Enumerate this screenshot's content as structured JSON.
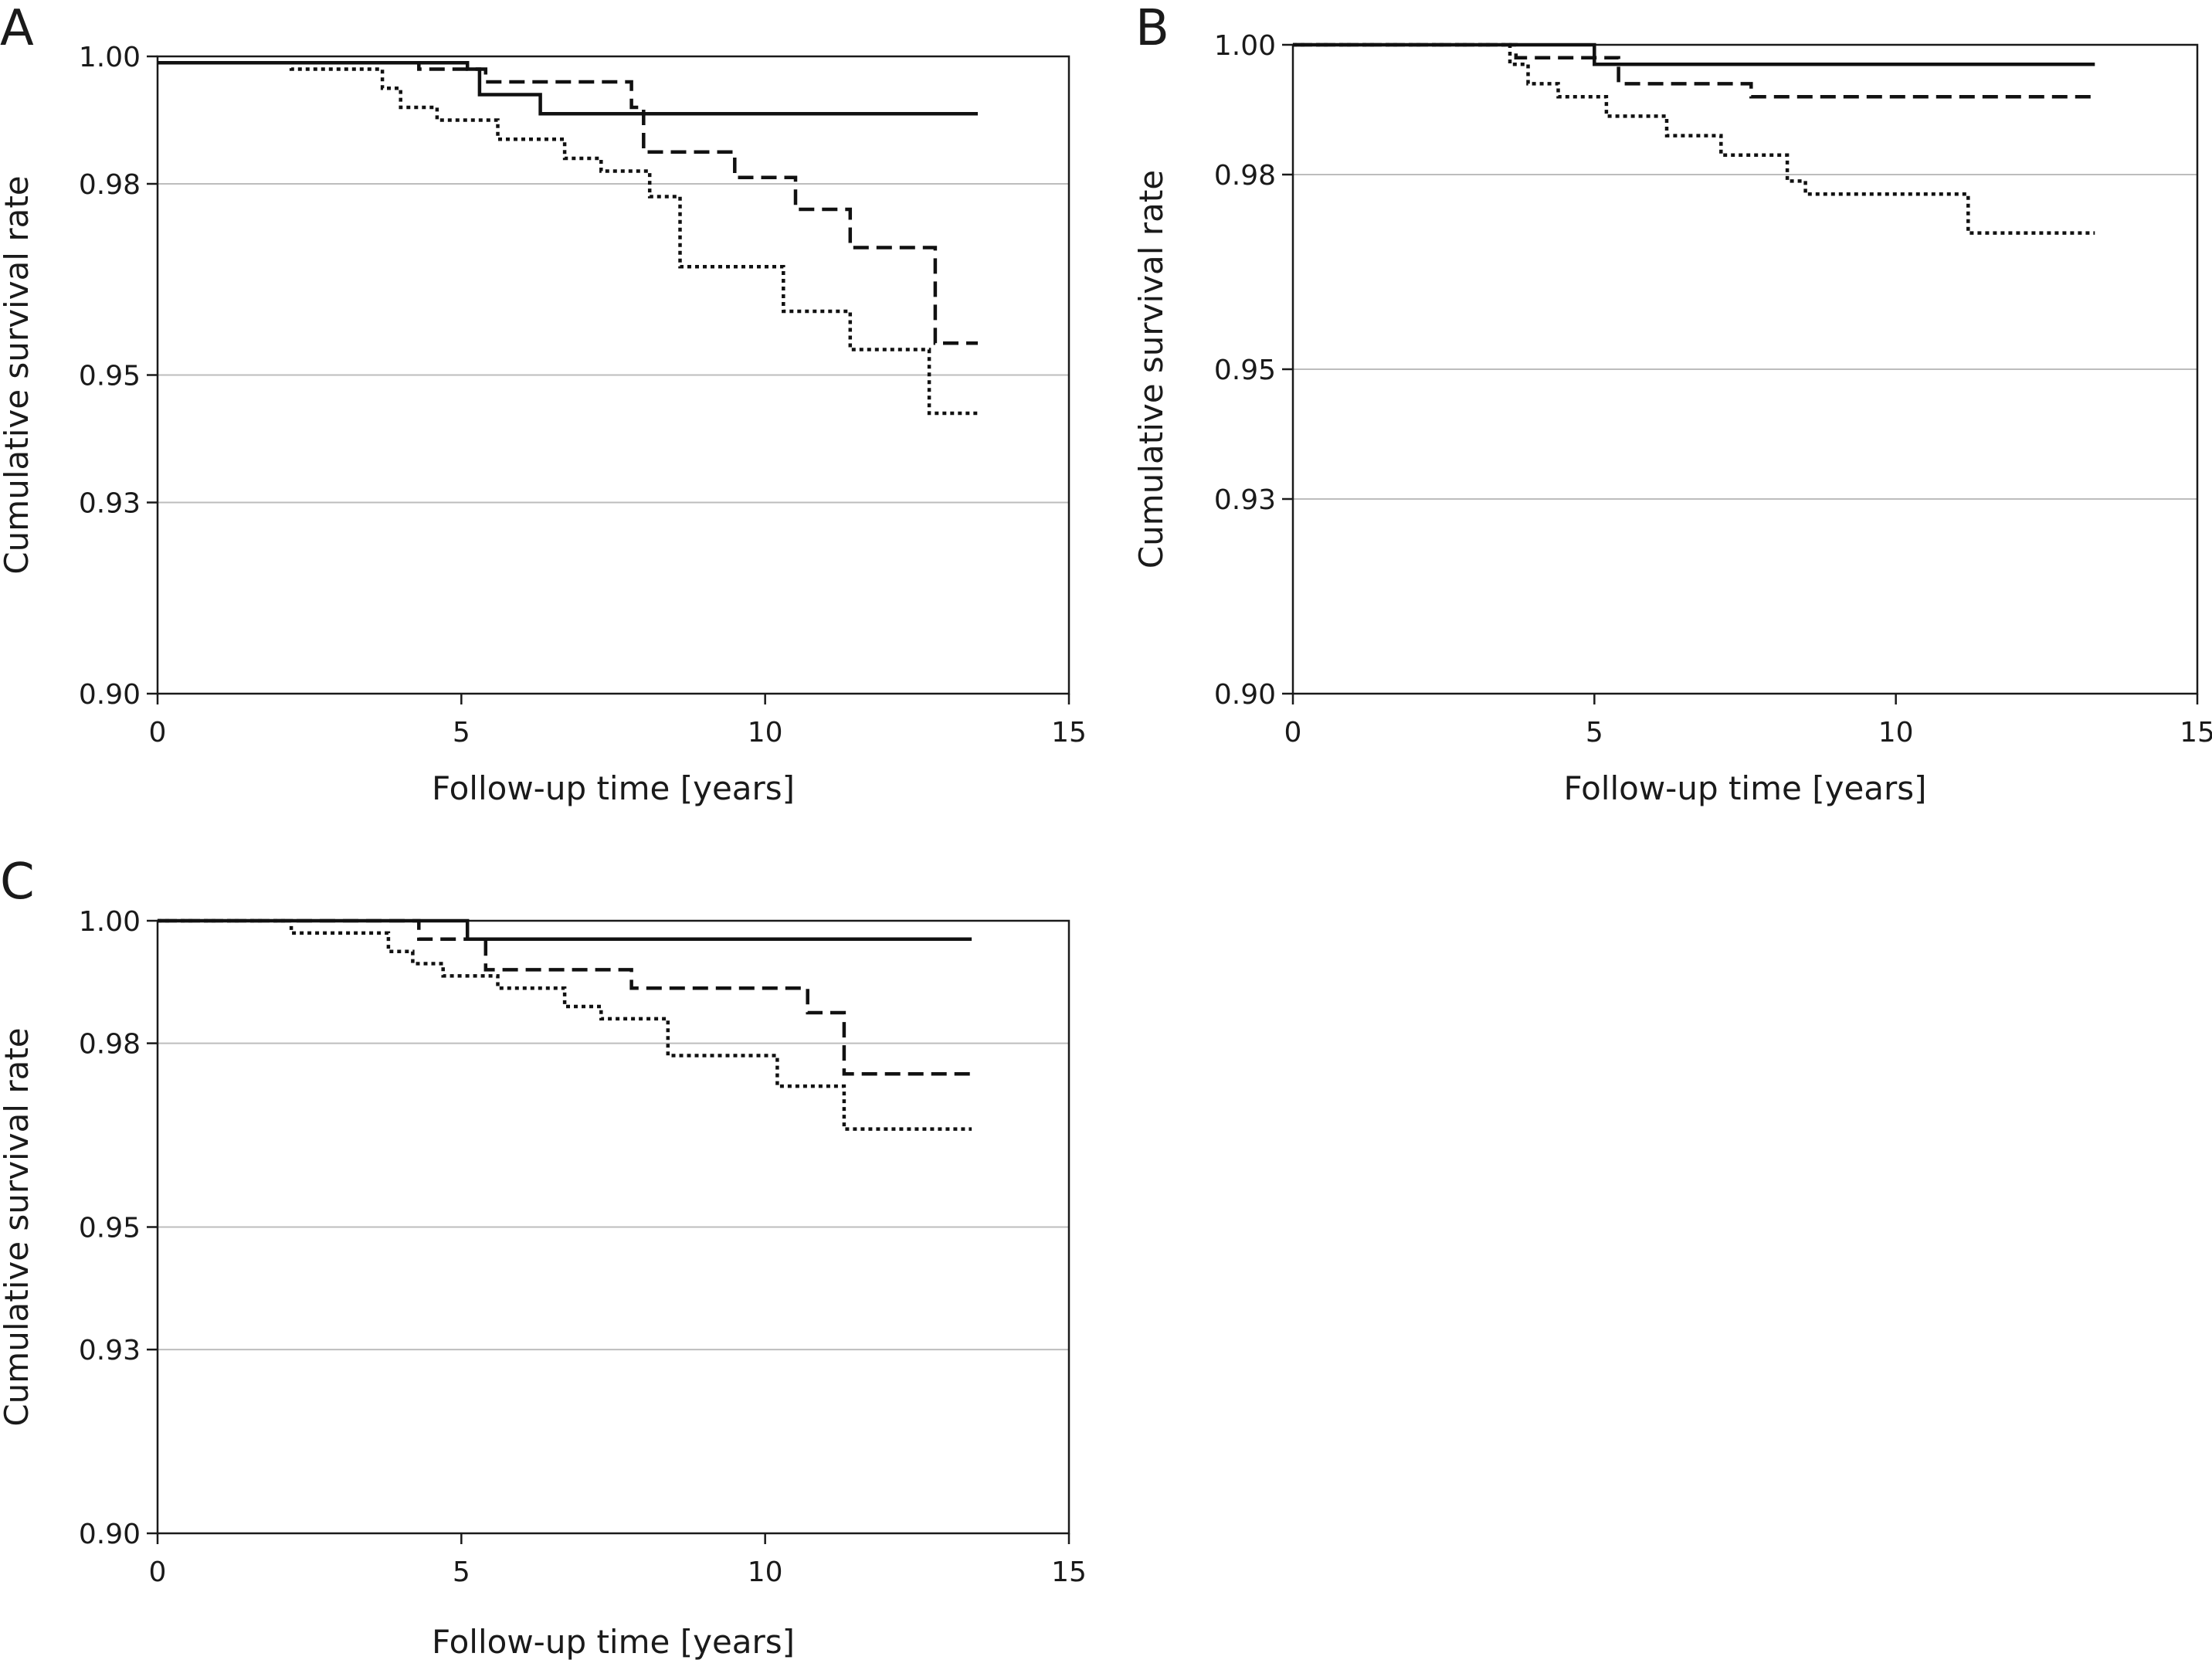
{
  "chart_data": [
    {
      "panel_label": "A",
      "type": "line",
      "step": true,
      "xlabel": "Follow-up time [years]",
      "ylabel": "Cumulative survival rate",
      "xlim": [
        0,
        15
      ],
      "ylim": [
        0.9,
        1.0
      ],
      "xticks": [
        "0",
        "5",
        "10",
        "15"
      ],
      "yticks": [
        "1.00",
        "0.98",
        "0.95",
        "0.93",
        "0.90"
      ],
      "grid": "horizontal",
      "series": [
        {
          "style": "solid",
          "x": [
            0,
            5.1,
            5.3,
            6.3,
            13.5
          ],
          "y": [
            0.999,
            0.998,
            0.994,
            0.991,
            0.991
          ]
        },
        {
          "style": "dashed",
          "x": [
            0,
            4.3,
            5.4,
            7.8,
            8.0,
            9.5,
            10.5,
            11.4,
            12.8,
            13.5
          ],
          "y": [
            0.999,
            0.998,
            0.996,
            0.992,
            0.985,
            0.981,
            0.976,
            0.97,
            0.955,
            0.955
          ]
        },
        {
          "style": "dotted",
          "x": [
            0,
            2.2,
            3.7,
            4.0,
            4.6,
            5.6,
            6.7,
            7.3,
            8.1,
            8.6,
            10.3,
            11.4,
            12.7,
            13.5
          ],
          "y": [
            0.999,
            0.998,
            0.995,
            0.992,
            0.99,
            0.987,
            0.984,
            0.982,
            0.978,
            0.967,
            0.96,
            0.954,
            0.944,
            0.944
          ]
        }
      ]
    },
    {
      "panel_label": "B",
      "type": "line",
      "step": true,
      "xlabel": "Follow-up time [years]",
      "ylabel": "Cumulative survival rate",
      "xlim": [
        0,
        15
      ],
      "ylim": [
        0.9,
        1.0
      ],
      "xticks": [
        "0",
        "5",
        "10",
        "15"
      ],
      "yticks": [
        "1.00",
        "0.98",
        "0.95",
        "0.93",
        "0.90"
      ],
      "grid": "horizontal",
      "series": [
        {
          "style": "solid",
          "x": [
            0,
            5.0,
            13.3
          ],
          "y": [
            1.0,
            0.997,
            0.997
          ]
        },
        {
          "style": "dashed",
          "x": [
            0,
            3.7,
            5.4,
            7.6,
            13.3
          ],
          "y": [
            1.0,
            0.998,
            0.994,
            0.992,
            0.992
          ]
        },
        {
          "style": "dotted",
          "x": [
            0,
            3.6,
            3.9,
            4.4,
            5.2,
            6.2,
            7.1,
            8.2,
            8.5,
            11.2,
            13.3
          ],
          "y": [
            1.0,
            0.997,
            0.994,
            0.992,
            0.989,
            0.986,
            0.983,
            0.979,
            0.977,
            0.971,
            0.971
          ]
        }
      ]
    },
    {
      "panel_label": "C",
      "type": "line",
      "step": true,
      "xlabel": "Follow-up time [years]",
      "ylabel": "Cumulative survival rate",
      "xlim": [
        0,
        15
      ],
      "ylim": [
        0.9,
        1.0
      ],
      "xticks": [
        "0",
        "5",
        "10",
        "15"
      ],
      "yticks": [
        "1.00",
        "0.98",
        "0.95",
        "0.93",
        "0.90"
      ],
      "grid": "horizontal",
      "series": [
        {
          "style": "solid",
          "x": [
            0,
            5.1,
            13.4
          ],
          "y": [
            1.0,
            0.997,
            0.997
          ]
        },
        {
          "style": "dashed",
          "x": [
            0,
            4.3,
            5.4,
            7.8,
            10.7,
            11.3,
            13.4
          ],
          "y": [
            1.0,
            0.997,
            0.992,
            0.989,
            0.985,
            0.975,
            0.975
          ]
        },
        {
          "style": "dotted",
          "x": [
            0,
            2.2,
            3.8,
            4.2,
            4.7,
            5.6,
            6.7,
            7.3,
            8.4,
            10.2,
            11.3,
            13.4
          ],
          "y": [
            1.0,
            0.998,
            0.995,
            0.993,
            0.991,
            0.989,
            0.986,
            0.984,
            0.978,
            0.973,
            0.966,
            0.966
          ]
        }
      ]
    }
  ]
}
